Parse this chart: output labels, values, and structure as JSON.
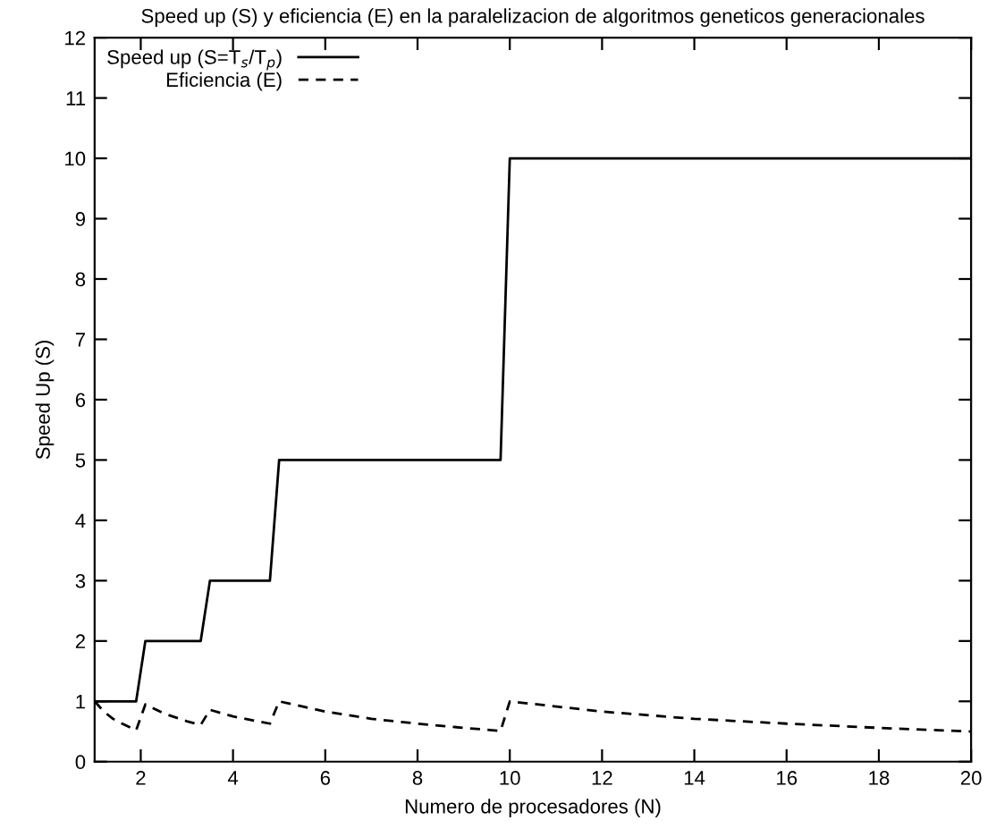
{
  "chart_data": {
    "type": "line",
    "title": "Speed up (S) y eficiencia (E) en la paralelizacion de algoritmos geneticos generacionales",
    "xlabel": "Numero de procesadores (N)",
    "ylabel": "Speed Up (S)",
    "xlim": [
      1,
      20
    ],
    "xticks": [
      2,
      4,
      6,
      8,
      10,
      12,
      14,
      16,
      18,
      20
    ],
    "ylim": [
      0,
      12
    ],
    "yticks": [
      0,
      1,
      2,
      3,
      4,
      5,
      6,
      7,
      8,
      9,
      10,
      11,
      12
    ],
    "grid": false,
    "legend": "top left",
    "marker": "none",
    "series": [
      {
        "name": "Speed up (S=T$_{s}$/T$_{p}$)",
        "color": "#000000",
        "line_style": "solid",
        "x": [
          1,
          1.9,
          2.1,
          3.3,
          3.5,
          4.8,
          5,
          9.8,
          10,
          20
        ],
        "values": [
          1,
          1,
          2,
          2,
          3,
          3,
          5,
          5,
          10,
          10
        ]
      },
      {
        "name": "Eficiencia (E)",
        "color": "#000000",
        "line_style": "dashed",
        "x": [
          1,
          1.2,
          1.4,
          1.6,
          1.9,
          2.1,
          2.5,
          3,
          3.3,
          3.5,
          4,
          4.8,
          5,
          6,
          7,
          8,
          9,
          9.8,
          10,
          12,
          14,
          16,
          18,
          20
        ],
        "values": [
          1,
          0.83,
          0.71,
          0.63,
          0.52,
          0.95,
          0.8,
          0.67,
          0.61,
          0.86,
          0.75,
          0.63,
          1,
          0.83,
          0.71,
          0.63,
          0.56,
          0.51,
          1,
          0.83,
          0.71,
          0.63,
          0.56,
          0.5
        ]
      }
    ]
  }
}
